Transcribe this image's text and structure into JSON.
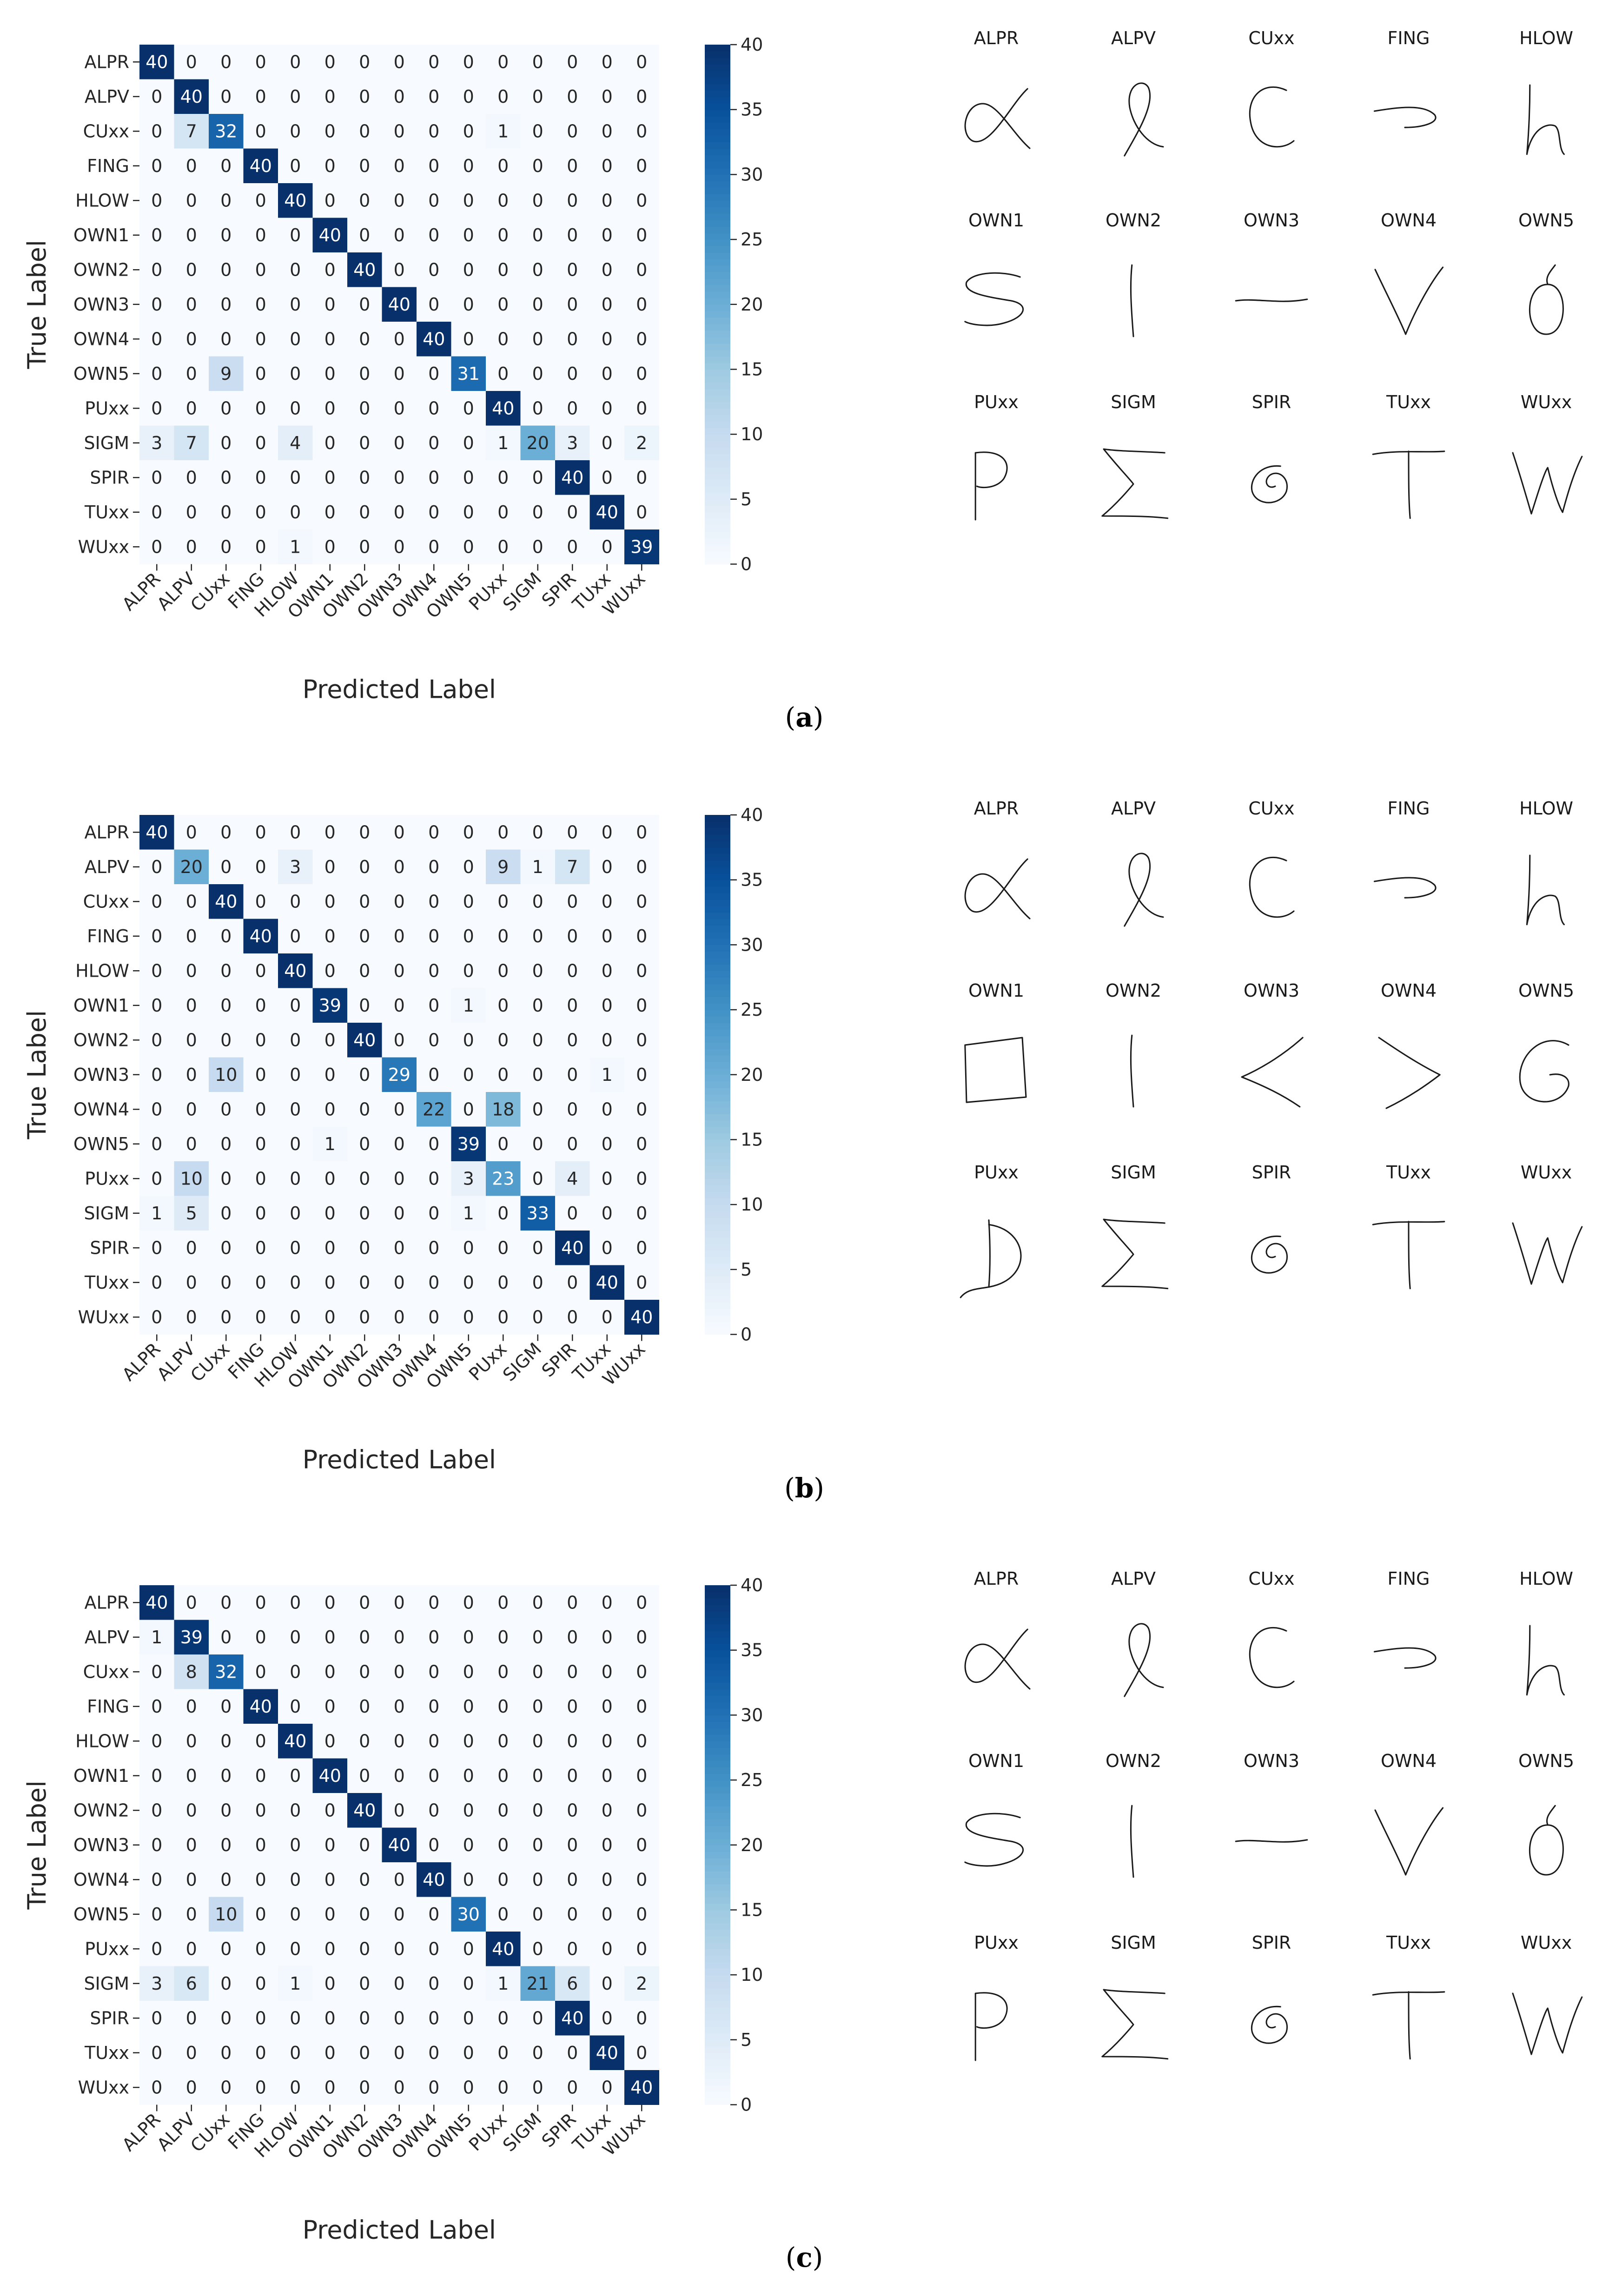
{
  "classes": [
    "ALPR",
    "ALPV",
    "CUxx",
    "FING",
    "HLOW",
    "OWN1",
    "OWN2",
    "OWN3",
    "OWN4",
    "OWN5",
    "PUxx",
    "SIGM",
    "SPIR",
    "TUxx",
    "WUxx"
  ],
  "colorbar": {
    "ticks": [
      0,
      5,
      10,
      15,
      20,
      25,
      30,
      35,
      40
    ],
    "vmin": 0,
    "vmax": 40
  },
  "colormap": [
    "#f7fbff",
    "#deebf7",
    "#c6dbef",
    "#9ecae1",
    "#6baed6",
    "#4292c6",
    "#2171b5",
    "#08519c",
    "#08306b"
  ],
  "panels": [
    {
      "caption_open": "(",
      "caption_letter": "a",
      "caption_close": ")",
      "chart_data": {
        "type": "heatmap",
        "xlabel": "Predicted Label",
        "ylabel": "True Label",
        "x": [
          "ALPR",
          "ALPV",
          "CUxx",
          "FING",
          "HLOW",
          "OWN1",
          "OWN2",
          "OWN3",
          "OWN4",
          "OWN5",
          "PUxx",
          "SIGM",
          "SPIR",
          "TUxx",
          "WUxx"
        ],
        "y": [
          "ALPR",
          "ALPV",
          "CUxx",
          "FING",
          "HLOW",
          "OWN1",
          "OWN2",
          "OWN3",
          "OWN4",
          "OWN5",
          "PUxx",
          "SIGM",
          "SPIR",
          "TUxx",
          "WUxx"
        ],
        "values": [
          [
            40,
            0,
            0,
            0,
            0,
            0,
            0,
            0,
            0,
            0,
            0,
            0,
            0,
            0,
            0
          ],
          [
            0,
            40,
            0,
            0,
            0,
            0,
            0,
            0,
            0,
            0,
            0,
            0,
            0,
            0,
            0
          ],
          [
            0,
            7,
            32,
            0,
            0,
            0,
            0,
            0,
            0,
            0,
            1,
            0,
            0,
            0,
            0
          ],
          [
            0,
            0,
            0,
            40,
            0,
            0,
            0,
            0,
            0,
            0,
            0,
            0,
            0,
            0,
            0
          ],
          [
            0,
            0,
            0,
            0,
            40,
            0,
            0,
            0,
            0,
            0,
            0,
            0,
            0,
            0,
            0
          ],
          [
            0,
            0,
            0,
            0,
            0,
            40,
            0,
            0,
            0,
            0,
            0,
            0,
            0,
            0,
            0
          ],
          [
            0,
            0,
            0,
            0,
            0,
            0,
            40,
            0,
            0,
            0,
            0,
            0,
            0,
            0,
            0
          ],
          [
            0,
            0,
            0,
            0,
            0,
            0,
            0,
            40,
            0,
            0,
            0,
            0,
            0,
            0,
            0
          ],
          [
            0,
            0,
            0,
            0,
            0,
            0,
            0,
            0,
            40,
            0,
            0,
            0,
            0,
            0,
            0
          ],
          [
            0,
            0,
            9,
            0,
            0,
            0,
            0,
            0,
            0,
            31,
            0,
            0,
            0,
            0,
            0
          ],
          [
            0,
            0,
            0,
            0,
            0,
            0,
            0,
            0,
            0,
            0,
            40,
            0,
            0,
            0,
            0
          ],
          [
            3,
            7,
            0,
            0,
            4,
            0,
            0,
            0,
            0,
            0,
            1,
            20,
            3,
            0,
            2
          ],
          [
            0,
            0,
            0,
            0,
            0,
            0,
            0,
            0,
            0,
            0,
            0,
            0,
            40,
            0,
            0
          ],
          [
            0,
            0,
            0,
            0,
            0,
            0,
            0,
            0,
            0,
            0,
            0,
            0,
            0,
            40,
            0
          ],
          [
            0,
            0,
            0,
            0,
            1,
            0,
            0,
            0,
            0,
            0,
            0,
            0,
            0,
            0,
            39
          ]
        ],
        "colorbar_range": [
          0,
          40
        ]
      },
      "samples": [
        {
          "label": "ALPR",
          "glyph": "alpha"
        },
        {
          "label": "ALPV",
          "glyph": "loop-l"
        },
        {
          "label": "CUxx",
          "glyph": "c-curve"
        },
        {
          "label": "FING",
          "glyph": "hook-right"
        },
        {
          "label": "HLOW",
          "glyph": "h"
        },
        {
          "label": "OWN1",
          "glyph": "s-zigzag"
        },
        {
          "label": "OWN2",
          "glyph": "vertical-line"
        },
        {
          "label": "OWN3",
          "glyph": "horizontal-line"
        },
        {
          "label": "OWN4",
          "glyph": "v"
        },
        {
          "label": "OWN5",
          "glyph": "o-tail"
        },
        {
          "label": "PUxx",
          "glyph": "p"
        },
        {
          "label": "SIGM",
          "glyph": "sigma"
        },
        {
          "label": "SPIR",
          "glyph": "spiral"
        },
        {
          "label": "TUxx",
          "glyph": "t"
        },
        {
          "label": "WUxx",
          "glyph": "w"
        }
      ]
    },
    {
      "caption_open": "(",
      "caption_letter": "b",
      "caption_close": ")",
      "chart_data": {
        "type": "heatmap",
        "xlabel": "Predicted Label",
        "ylabel": "True Label",
        "x": [
          "ALPR",
          "ALPV",
          "CUxx",
          "FING",
          "HLOW",
          "OWN1",
          "OWN2",
          "OWN3",
          "OWN4",
          "OWN5",
          "PUxx",
          "SIGM",
          "SPIR",
          "TUxx",
          "WUxx"
        ],
        "y": [
          "ALPR",
          "ALPV",
          "CUxx",
          "FING",
          "HLOW",
          "OWN1",
          "OWN2",
          "OWN3",
          "OWN4",
          "OWN5",
          "PUxx",
          "SIGM",
          "SPIR",
          "TUxx",
          "WUxx"
        ],
        "values": [
          [
            40,
            0,
            0,
            0,
            0,
            0,
            0,
            0,
            0,
            0,
            0,
            0,
            0,
            0,
            0
          ],
          [
            0,
            20,
            0,
            0,
            3,
            0,
            0,
            0,
            0,
            0,
            9,
            1,
            7,
            0,
            0
          ],
          [
            0,
            0,
            40,
            0,
            0,
            0,
            0,
            0,
            0,
            0,
            0,
            0,
            0,
            0,
            0
          ],
          [
            0,
            0,
            0,
            40,
            0,
            0,
            0,
            0,
            0,
            0,
            0,
            0,
            0,
            0,
            0
          ],
          [
            0,
            0,
            0,
            0,
            40,
            0,
            0,
            0,
            0,
            0,
            0,
            0,
            0,
            0,
            0
          ],
          [
            0,
            0,
            0,
            0,
            0,
            39,
            0,
            0,
            0,
            1,
            0,
            0,
            0,
            0,
            0
          ],
          [
            0,
            0,
            0,
            0,
            0,
            0,
            40,
            0,
            0,
            0,
            0,
            0,
            0,
            0,
            0
          ],
          [
            0,
            0,
            10,
            0,
            0,
            0,
            0,
            29,
            0,
            0,
            0,
            0,
            0,
            1,
            0
          ],
          [
            0,
            0,
            0,
            0,
            0,
            0,
            0,
            0,
            22,
            0,
            18,
            0,
            0,
            0,
            0
          ],
          [
            0,
            0,
            0,
            0,
            0,
            1,
            0,
            0,
            0,
            39,
            0,
            0,
            0,
            0,
            0
          ],
          [
            0,
            10,
            0,
            0,
            0,
            0,
            0,
            0,
            0,
            3,
            23,
            0,
            4,
            0,
            0
          ],
          [
            1,
            5,
            0,
            0,
            0,
            0,
            0,
            0,
            0,
            1,
            0,
            33,
            0,
            0,
            0
          ],
          [
            0,
            0,
            0,
            0,
            0,
            0,
            0,
            0,
            0,
            0,
            0,
            0,
            40,
            0,
            0
          ],
          [
            0,
            0,
            0,
            0,
            0,
            0,
            0,
            0,
            0,
            0,
            0,
            0,
            0,
            40,
            0
          ],
          [
            0,
            0,
            0,
            0,
            0,
            0,
            0,
            0,
            0,
            0,
            0,
            0,
            0,
            0,
            40
          ]
        ],
        "colorbar_range": [
          0,
          40
        ]
      },
      "samples": [
        {
          "label": "ALPR",
          "glyph": "alpha"
        },
        {
          "label": "ALPV",
          "glyph": "loop-l"
        },
        {
          "label": "CUxx",
          "glyph": "c-curve"
        },
        {
          "label": "FING",
          "glyph": "hook-right"
        },
        {
          "label": "HLOW",
          "glyph": "h"
        },
        {
          "label": "OWN1",
          "glyph": "square"
        },
        {
          "label": "OWN2",
          "glyph": "vertical-line"
        },
        {
          "label": "OWN3",
          "glyph": "less-than"
        },
        {
          "label": "OWN4",
          "glyph": "greater-than"
        },
        {
          "label": "OWN5",
          "glyph": "g"
        },
        {
          "label": "PUxx",
          "glyph": "d"
        },
        {
          "label": "SIGM",
          "glyph": "sigma"
        },
        {
          "label": "SPIR",
          "glyph": "spiral"
        },
        {
          "label": "TUxx",
          "glyph": "t"
        },
        {
          "label": "WUxx",
          "glyph": "w"
        }
      ]
    },
    {
      "caption_open": "(",
      "caption_letter": "c",
      "caption_close": ")",
      "chart_data": {
        "type": "heatmap",
        "xlabel": "Predicted Label",
        "ylabel": "True Label",
        "x": [
          "ALPR",
          "ALPV",
          "CUxx",
          "FING",
          "HLOW",
          "OWN1",
          "OWN2",
          "OWN3",
          "OWN4",
          "OWN5",
          "PUxx",
          "SIGM",
          "SPIR",
          "TUxx",
          "WUxx"
        ],
        "y": [
          "ALPR",
          "ALPV",
          "CUxx",
          "FING",
          "HLOW",
          "OWN1",
          "OWN2",
          "OWN3",
          "OWN4",
          "OWN5",
          "PUxx",
          "SIGM",
          "SPIR",
          "TUxx",
          "WUxx"
        ],
        "values": [
          [
            40,
            0,
            0,
            0,
            0,
            0,
            0,
            0,
            0,
            0,
            0,
            0,
            0,
            0,
            0
          ],
          [
            1,
            39,
            0,
            0,
            0,
            0,
            0,
            0,
            0,
            0,
            0,
            0,
            0,
            0,
            0
          ],
          [
            0,
            8,
            32,
            0,
            0,
            0,
            0,
            0,
            0,
            0,
            0,
            0,
            0,
            0,
            0
          ],
          [
            0,
            0,
            0,
            40,
            0,
            0,
            0,
            0,
            0,
            0,
            0,
            0,
            0,
            0,
            0
          ],
          [
            0,
            0,
            0,
            0,
            40,
            0,
            0,
            0,
            0,
            0,
            0,
            0,
            0,
            0,
            0
          ],
          [
            0,
            0,
            0,
            0,
            0,
            40,
            0,
            0,
            0,
            0,
            0,
            0,
            0,
            0,
            0
          ],
          [
            0,
            0,
            0,
            0,
            0,
            0,
            40,
            0,
            0,
            0,
            0,
            0,
            0,
            0,
            0
          ],
          [
            0,
            0,
            0,
            0,
            0,
            0,
            0,
            40,
            0,
            0,
            0,
            0,
            0,
            0,
            0
          ],
          [
            0,
            0,
            0,
            0,
            0,
            0,
            0,
            0,
            40,
            0,
            0,
            0,
            0,
            0,
            0
          ],
          [
            0,
            0,
            10,
            0,
            0,
            0,
            0,
            0,
            0,
            30,
            0,
            0,
            0,
            0,
            0
          ],
          [
            0,
            0,
            0,
            0,
            0,
            0,
            0,
            0,
            0,
            0,
            40,
            0,
            0,
            0,
            0
          ],
          [
            3,
            6,
            0,
            0,
            1,
            0,
            0,
            0,
            0,
            0,
            1,
            21,
            6,
            0,
            2
          ],
          [
            0,
            0,
            0,
            0,
            0,
            0,
            0,
            0,
            0,
            0,
            0,
            0,
            40,
            0,
            0
          ],
          [
            0,
            0,
            0,
            0,
            0,
            0,
            0,
            0,
            0,
            0,
            0,
            0,
            0,
            40,
            0
          ],
          [
            0,
            0,
            0,
            0,
            0,
            0,
            0,
            0,
            0,
            0,
            0,
            0,
            0,
            0,
            40
          ]
        ],
        "colorbar_range": [
          0,
          40
        ]
      },
      "samples": [
        {
          "label": "ALPR",
          "glyph": "alpha"
        },
        {
          "label": "ALPV",
          "glyph": "loop-l"
        },
        {
          "label": "CUxx",
          "glyph": "c-curve"
        },
        {
          "label": "FING",
          "glyph": "hook-right"
        },
        {
          "label": "HLOW",
          "glyph": "h"
        },
        {
          "label": "OWN1",
          "glyph": "s-zigzag"
        },
        {
          "label": "OWN2",
          "glyph": "vertical-line"
        },
        {
          "label": "OWN3",
          "glyph": "horizontal-line"
        },
        {
          "label": "OWN4",
          "glyph": "v"
        },
        {
          "label": "OWN5",
          "glyph": "o-tail"
        },
        {
          "label": "PUxx",
          "glyph": "p"
        },
        {
          "label": "SIGM",
          "glyph": "sigma"
        },
        {
          "label": "SPIR",
          "glyph": "spiral"
        },
        {
          "label": "TUxx",
          "glyph": "t"
        },
        {
          "label": "WUxx",
          "glyph": "w"
        }
      ]
    }
  ]
}
